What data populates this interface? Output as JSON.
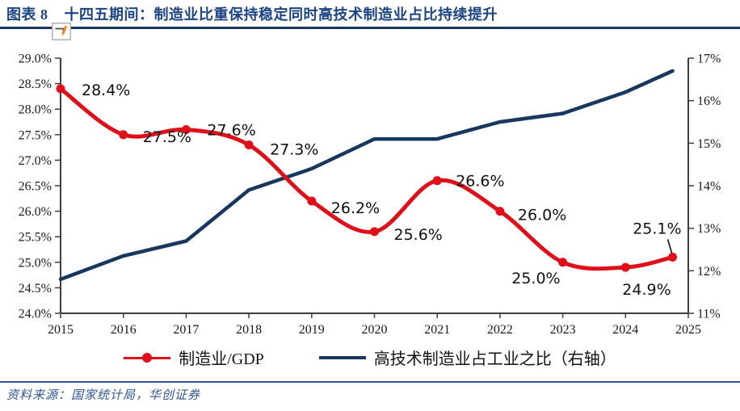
{
  "header": {
    "fig_label": "图表 8",
    "title": "十四五期间：制造业比重保持稳定同时高技术制造业占比持续提升"
  },
  "icons": {
    "chart_edit": "pencil-box-icon"
  },
  "colors": {
    "title_navy": "#1b4484",
    "rule_navy": "#17375e",
    "red_series": "#e0101a",
    "navy_series": "#17375e",
    "source_blue": "#2f5597",
    "axis": "#3f3f3f"
  },
  "chart_data": {
    "type": "line",
    "title": "十四五期间：制造业比重保持稳定同时高技术制造业占比持续提升",
    "x_tick_labels": [
      "2015",
      "2016",
      "2017",
      "2018",
      "2019",
      "2020",
      "2021",
      "2022",
      "2023",
      "2024",
      "2025"
    ],
    "left_axis": {
      "ylim": [
        24.0,
        29.0
      ],
      "tick_labels": [
        "29.0%",
        "28.5%",
        "28.0%",
        "27.5%",
        "27.0%",
        "26.5%",
        "26.0%",
        "25.5%",
        "25.0%",
        "24.5%",
        "24.0%"
      ]
    },
    "right_axis": {
      "ylim": [
        11,
        17
      ],
      "tick_labels": [
        "17%",
        "16%",
        "15%",
        "14%",
        "13%",
        "12%",
        "11%"
      ]
    },
    "grid": false,
    "legend_position": "bottom",
    "series": [
      {
        "name": "制造业/GDP",
        "axis": "left",
        "color": "#e0101a",
        "style": "smooth-with-markers",
        "x": [
          2015,
          2016,
          2017,
          2018,
          2019,
          2020,
          2021,
          2022,
          2023,
          2024,
          2024.75
        ],
        "values": [
          28.4,
          27.5,
          27.6,
          27.3,
          26.2,
          25.6,
          26.6,
          26.0,
          25.0,
          24.9,
          25.1
        ],
        "point_labels": [
          "28.4%",
          "27.5%",
          "27.6%",
          "27.3%",
          "26.2%",
          "25.6%",
          "26.6%",
          "26.0%",
          "25.0%",
          "24.9%",
          "25.1%"
        ]
      },
      {
        "name": "高技术制造业占工业之比（右轴）",
        "axis": "right",
        "color": "#17375e",
        "style": "straight",
        "x": [
          2015,
          2016,
          2017,
          2018,
          2019,
          2020,
          2021,
          2022,
          2023,
          2024,
          2024.75
        ],
        "values": [
          11.8,
          12.35,
          12.7,
          13.9,
          14.4,
          15.1,
          15.1,
          15.5,
          15.7,
          16.2,
          16.7
        ],
        "point_labels": []
      }
    ]
  },
  "legend": [
    {
      "label": "制造业/GDP",
      "color": "#e0101a"
    },
    {
      "label": "高技术制造业占工业之比（右轴）",
      "color": "#17375e"
    }
  ],
  "source": {
    "text": "资料来源：国家统计局，华创证券"
  }
}
